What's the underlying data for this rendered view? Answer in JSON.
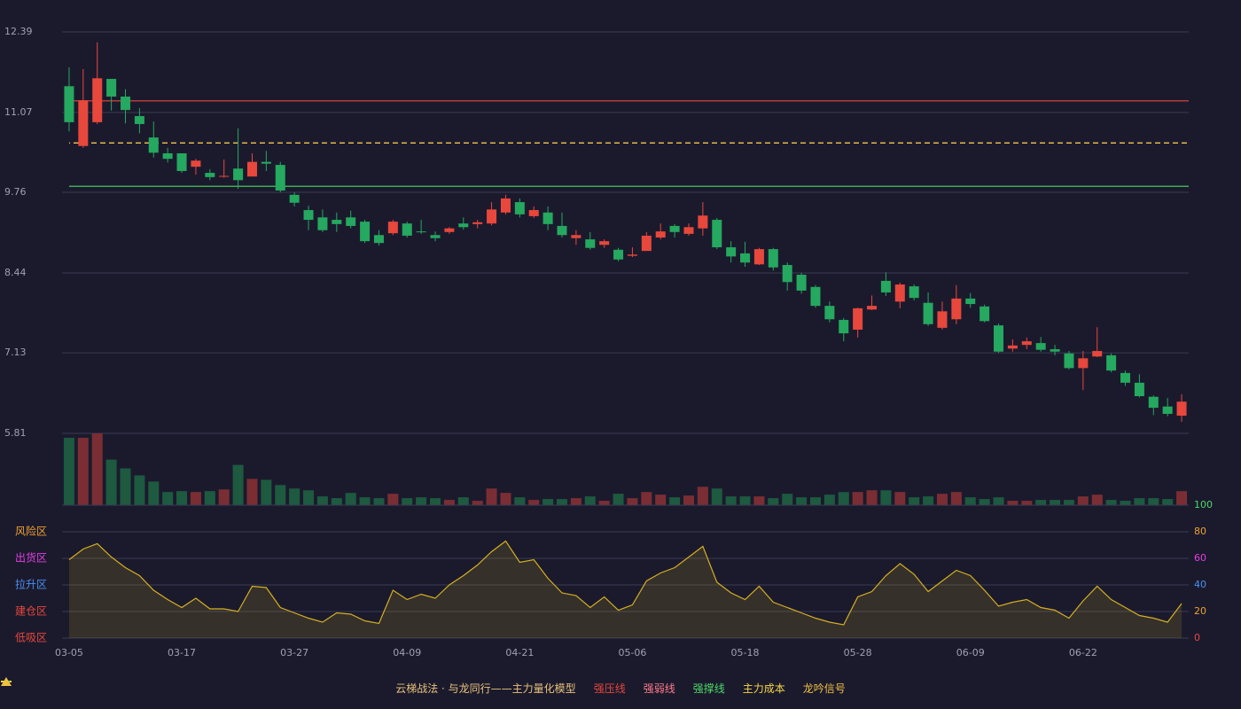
{
  "chart_data": {
    "type": "candlestick",
    "categories": [
      "03-05",
      null,
      null,
      null,
      null,
      null,
      null,
      null,
      "03-17",
      null,
      null,
      null,
      null,
      null,
      null,
      null,
      "03-27",
      null,
      null,
      null,
      null,
      null,
      null,
      null,
      "04-09",
      null,
      null,
      null,
      null,
      null,
      null,
      null,
      "04-21",
      null,
      null,
      null,
      null,
      null,
      null,
      null,
      "05-06",
      null,
      null,
      null,
      null,
      null,
      null,
      null,
      "05-18",
      null,
      null,
      null,
      null,
      null,
      null,
      null,
      "05-28",
      null,
      null,
      null,
      null,
      null,
      null,
      null,
      "06-09",
      null,
      null,
      null,
      null,
      null,
      null,
      null,
      "06-22",
      null,
      null,
      null,
      null,
      null,
      null,
      null
    ],
    "open": [
      11.5,
      10.52,
      10.91,
      11.62,
      11.33,
      11.01,
      10.66,
      10.4,
      10.4,
      10.18,
      10.08,
      10.02,
      10.15,
      10.02,
      10.26,
      10.21,
      9.72,
      9.47,
      9.35,
      9.31,
      9.35,
      9.28,
      9.06,
      9.09,
      9.25,
      9.12,
      9.06,
      9.11,
      9.25,
      9.24,
      9.25,
      9.43,
      9.6,
      9.37,
      9.43,
      9.21,
      9.01,
      8.99,
      8.9,
      8.82,
      8.72,
      8.8,
      9.02,
      9.21,
      9.08,
      9.17,
      9.31,
      8.86,
      8.76,
      8.58,
      8.83,
      8.57,
      8.41,
      8.21,
      7.9,
      7.67,
      7.51,
      7.84,
      8.31,
      7.97,
      8.22,
      7.95,
      7.54,
      7.68,
      8.02,
      7.89,
      7.58,
      7.2,
      7.26,
      7.29,
      7.19,
      7.12,
      6.88,
      7.07,
      7.09,
      6.8,
      6.64,
      6.41,
      6.25,
      6.1
    ],
    "close": [
      10.91,
      11.27,
      11.63,
      11.33,
      11.11,
      10.88,
      10.41,
      10.31,
      10.11,
      10.28,
      10.01,
      10.03,
      9.96,
      10.26,
      10.23,
      9.79,
      9.59,
      9.31,
      9.14,
      9.24,
      9.21,
      8.96,
      8.93,
      9.28,
      9.05,
      9.11,
      9.01,
      9.17,
      9.19,
      9.27,
      9.48,
      9.66,
      9.4,
      9.47,
      9.24,
      9.06,
      9.06,
      8.85,
      8.96,
      8.66,
      8.74,
      9.05,
      9.12,
      9.11,
      9.19,
      9.38,
      8.86,
      8.71,
      8.61,
      8.83,
      8.53,
      8.29,
      8.15,
      7.9,
      7.68,
      7.45,
      7.86,
      7.9,
      8.12,
      8.25,
      8.03,
      7.6,
      7.81,
      8.02,
      7.93,
      7.65,
      7.15,
      7.25,
      7.32,
      7.18,
      7.15,
      6.88,
      7.04,
      7.16,
      6.84,
      6.64,
      6.42,
      6.23,
      6.13,
      6.33
    ],
    "high": [
      11.81,
      11.78,
      12.22,
      11.62,
      11.45,
      11.14,
      10.92,
      10.49,
      10.4,
      10.31,
      10.14,
      10.3,
      10.81,
      10.4,
      10.44,
      10.26,
      9.76,
      9.54,
      9.48,
      9.43,
      9.46,
      9.31,
      9.14,
      9.31,
      9.28,
      9.31,
      9.12,
      9.19,
      9.35,
      9.31,
      9.6,
      9.72,
      9.66,
      9.53,
      9.53,
      9.43,
      9.14,
      9.11,
      8.99,
      8.85,
      8.86,
      9.11,
      9.25,
      9.24,
      9.25,
      9.6,
      9.34,
      8.96,
      8.95,
      8.85,
      8.85,
      8.61,
      8.44,
      8.24,
      7.97,
      7.7,
      7.87,
      8.07,
      8.45,
      8.28,
      8.25,
      8.12,
      7.97,
      8.24,
      8.11,
      7.92,
      7.61,
      7.35,
      7.38,
      7.39,
      7.26,
      7.16,
      7.16,
      7.55,
      7.12,
      6.84,
      6.78,
      6.43,
      6.39,
      6.45
    ],
    "low": [
      10.76,
      10.49,
      10.88,
      11.1,
      10.89,
      10.73,
      10.33,
      10.25,
      10.08,
      10.05,
      9.96,
      10.0,
      9.82,
      10.02,
      10.11,
      9.76,
      9.53,
      9.14,
      9.11,
      9.11,
      9.17,
      8.93,
      8.89,
      9.06,
      9.02,
      9.08,
      8.96,
      9.08,
      9.15,
      9.17,
      9.22,
      9.4,
      9.35,
      9.34,
      9.14,
      9.02,
      8.9,
      8.82,
      8.85,
      8.63,
      8.7,
      8.8,
      8.99,
      9.02,
      9.05,
      9.05,
      8.83,
      8.61,
      8.54,
      8.57,
      8.48,
      8.15,
      8.1,
      7.87,
      7.63,
      7.32,
      7.38,
      7.83,
      8.06,
      7.86,
      7.99,
      7.57,
      7.51,
      7.6,
      7.87,
      7.63,
      7.13,
      7.15,
      7.19,
      7.15,
      7.09,
      6.86,
      6.52,
      7.06,
      6.81,
      6.59,
      6.4,
      6.11,
      6.09,
      6.0
    ],
    "volume": [
      77,
      77,
      82,
      52,
      42,
      34,
      27,
      15,
      16,
      15,
      16,
      18,
      46,
      30,
      29,
      23,
      19,
      17,
      10,
      8,
      14,
      9,
      8,
      13,
      8,
      9,
      8,
      6,
      9,
      5,
      19,
      14,
      9,
      6,
      7,
      7,
      8,
      10,
      5,
      13,
      8,
      15,
      12,
      9,
      11,
      21,
      19,
      10,
      10,
      10,
      8,
      13,
      9,
      9,
      12,
      15,
      15,
      17,
      17,
      15,
      9,
      10,
      13,
      15,
      9,
      7,
      9,
      5,
      5,
      6,
      6,
      6,
      10,
      12,
      6,
      5,
      8,
      8,
      7,
      16
    ],
    "up_color": "#e8473c",
    "down_color": "#25a85f",
    "ylim": [
      5.81,
      12.39
    ],
    "yticks": [
      12.39,
      11.07,
      9.76,
      8.44,
      7.13,
      5.81
    ],
    "grid": true,
    "levels": [
      {
        "name": "强压线",
        "value": 11.26,
        "color": "#e8473c",
        "style": "solid"
      },
      {
        "name": "强弱线",
        "value": 10.57,
        "color": "#ff7b8a",
        "style": "dashed"
      },
      {
        "name": "强撑线",
        "value": 9.86,
        "color": "#4cd964",
        "style": "solid"
      },
      {
        "name": "主力成本",
        "value": 10.57,
        "color": "#f5d742",
        "style": "dashed"
      }
    ],
    "signal": {
      "name": "龙吟信号",
      "color": "#f0c040"
    },
    "legend_title": "云梯战法 · 与龙同行——主力量化模型",
    "indicator": {
      "type": "area",
      "color": "#d4b020",
      "values": [
        59,
        67,
        71,
        61,
        53,
        47,
        36,
        29,
        23,
        30,
        22,
        22,
        20,
        39,
        38,
        23,
        19,
        15,
        12,
        19,
        18,
        13,
        11,
        36,
        29,
        33,
        30,
        40,
        47,
        55,
        65,
        73,
        57,
        59,
        45,
        34,
        32,
        23,
        31,
        21,
        25,
        43,
        49,
        53,
        61,
        69,
        42,
        34,
        29,
        39,
        27,
        23,
        19,
        15,
        12,
        10,
        31,
        35,
        47,
        56,
        48,
        35,
        43,
        51,
        47,
        36,
        24,
        27,
        29,
        23,
        21,
        15,
        28,
        39,
        29,
        23,
        17,
        15,
        12,
        26
      ],
      "ylim": [
        0,
        100
      ],
      "yticks": [
        0,
        20,
        40,
        60,
        80,
        100
      ],
      "ytick_colors": [
        "#e8473c",
        "#f0a030",
        "#4a90f0",
        "#e040e0",
        "#f0a030",
        "#4cd964"
      ],
      "zones": [
        {
          "label": "风险区",
          "value": 80,
          "color": "#f0a030"
        },
        {
          "label": "出货区",
          "value": 60,
          "color": "#e040e0"
        },
        {
          "label": "拉升区",
          "value": 40,
          "color": "#4a90f0"
        },
        {
          "label": "建仓区",
          "value": 20,
          "color": "#e8473c"
        },
        {
          "label": "低吸区",
          "value": 0,
          "color": "#e8473c"
        }
      ]
    }
  }
}
